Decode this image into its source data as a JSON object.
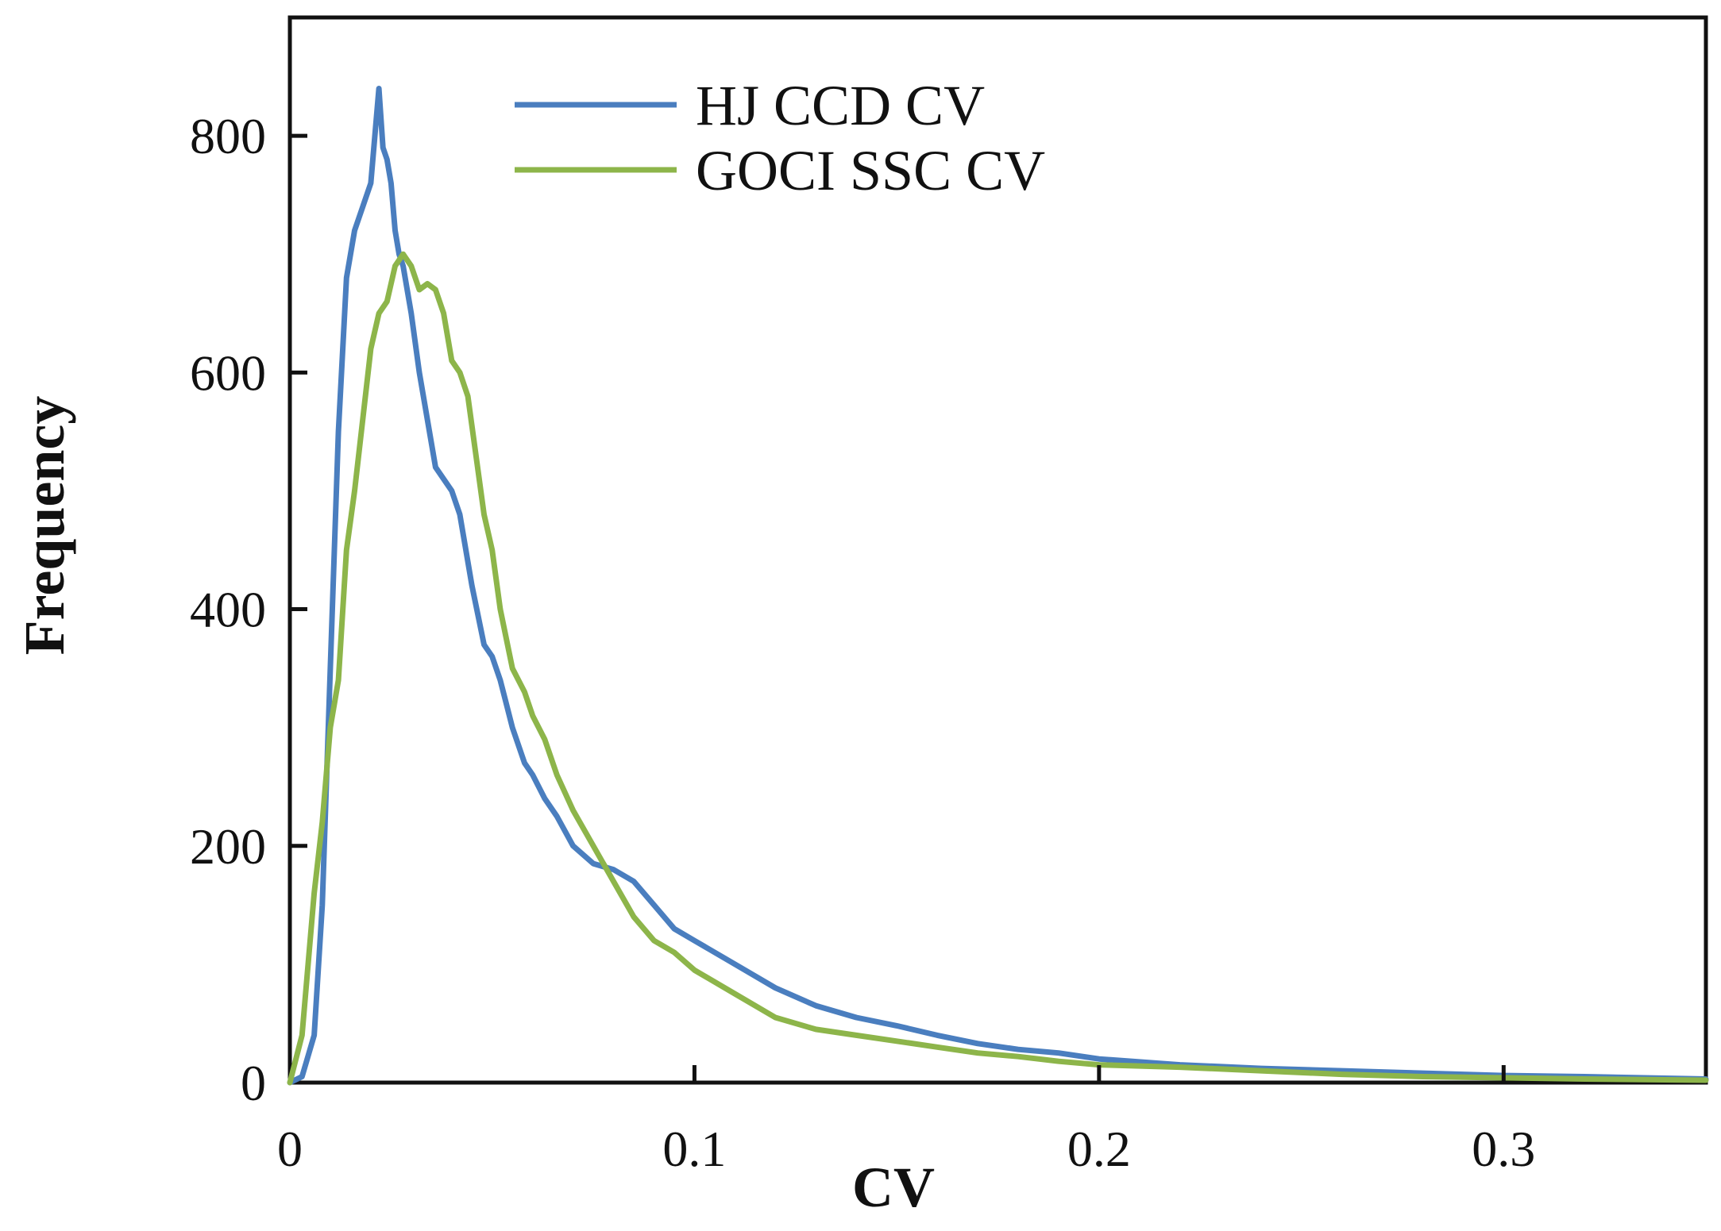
{
  "chart_data": {
    "type": "line",
    "title": "",
    "xlabel": "CV",
    "ylabel": "Frequency",
    "xlim": [
      0,
      0.35
    ],
    "ylim": [
      0,
      900
    ],
    "xticks": [
      0,
      0.1,
      0.2,
      0.3
    ],
    "xtick_labels": [
      "0",
      "0.1",
      "0.2",
      "0.3"
    ],
    "yticks": [
      0,
      200,
      400,
      600,
      800
    ],
    "ytick_labels": [
      "0",
      "200",
      "400",
      "600",
      "800"
    ],
    "grid": false,
    "legend_position": "top-center",
    "series": [
      {
        "name": "HJ CCD CV",
        "color": "#4a7ebf",
        "x": [
          0,
          0.003,
          0.006,
          0.008,
          0.01,
          0.012,
          0.014,
          0.016,
          0.018,
          0.02,
          0.022,
          0.023,
          0.024,
          0.025,
          0.026,
          0.027,
          0.028,
          0.03,
          0.032,
          0.034,
          0.036,
          0.038,
          0.04,
          0.042,
          0.045,
          0.048,
          0.05,
          0.052,
          0.055,
          0.058,
          0.06,
          0.063,
          0.066,
          0.07,
          0.075,
          0.08,
          0.085,
          0.09,
          0.095,
          0.1,
          0.11,
          0.12,
          0.13,
          0.14,
          0.15,
          0.16,
          0.17,
          0.18,
          0.19,
          0.2,
          0.22,
          0.24,
          0.26,
          0.28,
          0.3,
          0.32,
          0.35
        ],
        "values": [
          0,
          5,
          40,
          150,
          350,
          550,
          680,
          720,
          740,
          760,
          840,
          790,
          780,
          760,
          720,
          700,
          690,
          650,
          600,
          560,
          520,
          510,
          500,
          480,
          420,
          370,
          360,
          340,
          300,
          270,
          260,
          240,
          225,
          200,
          185,
          180,
          170,
          150,
          130,
          120,
          100,
          80,
          65,
          55,
          48,
          40,
          33,
          28,
          25,
          20,
          15,
          12,
          10,
          8,
          6,
          5,
          3
        ]
      },
      {
        "name": "GOCI SSC CV",
        "color": "#8db54a",
        "x": [
          0,
          0.003,
          0.006,
          0.008,
          0.01,
          0.012,
          0.014,
          0.016,
          0.018,
          0.02,
          0.022,
          0.024,
          0.026,
          0.028,
          0.03,
          0.032,
          0.034,
          0.036,
          0.038,
          0.04,
          0.042,
          0.044,
          0.046,
          0.048,
          0.05,
          0.052,
          0.055,
          0.058,
          0.06,
          0.063,
          0.066,
          0.07,
          0.075,
          0.08,
          0.085,
          0.09,
          0.095,
          0.1,
          0.11,
          0.12,
          0.13,
          0.14,
          0.15,
          0.16,
          0.17,
          0.18,
          0.19,
          0.2,
          0.22,
          0.24,
          0.26,
          0.28,
          0.3,
          0.32,
          0.35
        ],
        "values": [
          0,
          40,
          160,
          220,
          300,
          340,
          450,
          500,
          560,
          620,
          650,
          660,
          690,
          700,
          690,
          670,
          675,
          670,
          650,
          610,
          600,
          580,
          530,
          480,
          450,
          400,
          350,
          330,
          310,
          290,
          260,
          230,
          200,
          170,
          140,
          120,
          110,
          95,
          75,
          55,
          45,
          40,
          35,
          30,
          25,
          22,
          18,
          15,
          13,
          10,
          7,
          5,
          4,
          3,
          2
        ]
      }
    ]
  }
}
